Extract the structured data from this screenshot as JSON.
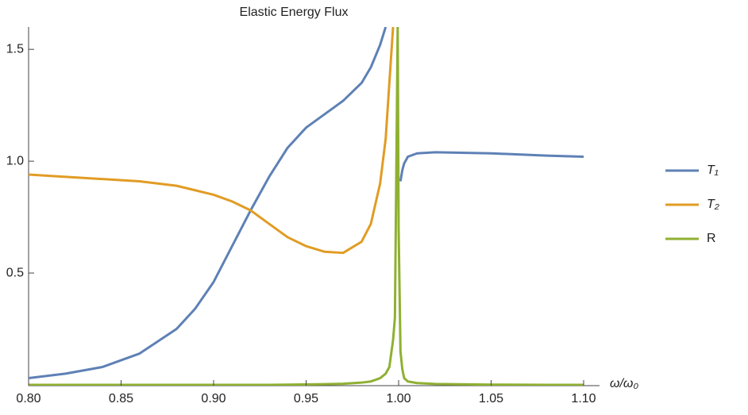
{
  "chart_data": {
    "type": "line",
    "title": "Elastic Energy Flux",
    "x_label": "ω/ω₀",
    "x": [
      0.8,
      0.82,
      0.84,
      0.86,
      0.88,
      0.89,
      0.9,
      0.91,
      0.92,
      0.93,
      0.94,
      0.95,
      0.96,
      0.97,
      0.98,
      0.985,
      0.99,
      0.993,
      0.995,
      0.997,
      0.998,
      0.9995,
      1.0,
      1.001,
      1.002,
      1.003,
      1.005,
      1.01,
      1.02,
      1.05,
      1.08,
      1.1
    ],
    "series": [
      {
        "name": "T₁",
        "color": "#5e81b5",
        "values": [
          0.03,
          0.05,
          0.08,
          0.14,
          0.25,
          0.34,
          0.46,
          0.62,
          0.78,
          0.93,
          1.06,
          1.15,
          1.21,
          1.27,
          1.35,
          1.42,
          1.52,
          1.6,
          null,
          null,
          null,
          null,
          null,
          0.91,
          0.96,
          0.99,
          1.02,
          1.035,
          1.04,
          1.035,
          1.025,
          1.02
        ]
      },
      {
        "name": "T₂",
        "color": "#e19c24",
        "values": [
          0.94,
          0.93,
          0.92,
          0.91,
          0.89,
          0.87,
          0.85,
          0.82,
          0.78,
          0.72,
          0.66,
          0.62,
          0.595,
          0.59,
          0.64,
          0.72,
          0.9,
          1.1,
          1.35,
          1.6,
          null,
          null,
          null,
          null,
          null,
          null,
          null,
          null,
          null,
          null,
          null,
          null
        ]
      },
      {
        "name": "R",
        "color": "#8fb032",
        "values": [
          0,
          0,
          0,
          0,
          0,
          0,
          0,
          0,
          0,
          0,
          0.001,
          0.002,
          0.003,
          0.005,
          0.01,
          0.015,
          0.03,
          0.05,
          0.08,
          0.2,
          0.3,
          1.6,
          0.7,
          0.15,
          0.07,
          0.03,
          0.015,
          0.008,
          0.004,
          0.001,
          0,
          0
        ]
      }
    ],
    "xlim": [
      0.8,
      1.1
    ],
    "xticks": [
      {
        "value": 0.8,
        "label": "0.80"
      },
      {
        "value": 0.85,
        "label": "0.85"
      },
      {
        "value": 0.9,
        "label": "0.90"
      },
      {
        "value": 0.95,
        "label": "0.95"
      },
      {
        "value": 1.0,
        "label": "1.00"
      },
      {
        "value": 1.05,
        "label": "1.05"
      },
      {
        "value": 1.1,
        "label": "1.10"
      }
    ],
    "ylim": [
      0,
      1.6
    ],
    "yticks": [
      0.5,
      {
        "value": 1.0,
        "label": "1.0"
      },
      1.5
    ],
    "legend": "right"
  }
}
